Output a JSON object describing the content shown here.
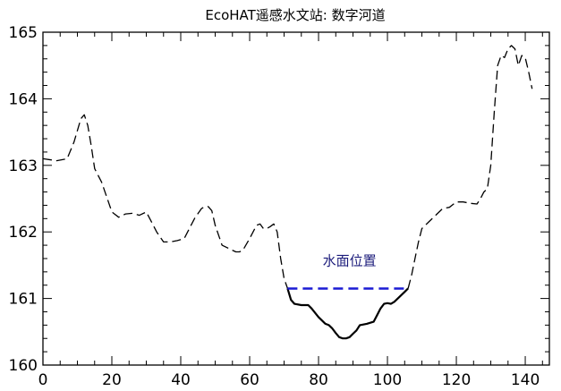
{
  "chart_data": {
    "type": "line",
    "title": "EcoHAT遥感水文站: 数字河道",
    "xlabel": "",
    "ylabel": "",
    "xlim": [
      0,
      147
    ],
    "ylim": [
      160,
      165
    ],
    "xticks": [
      0,
      20,
      40,
      60,
      80,
      100,
      120,
      140
    ],
    "yticks": [
      160,
      161,
      162,
      163,
      164,
      165
    ],
    "xtick_labels": [
      "0",
      "20",
      "40",
      "60",
      "80",
      "100",
      "120",
      "140"
    ],
    "ytick_labels": [
      "160",
      "161",
      "162",
      "163",
      "164",
      "165"
    ],
    "grid": false,
    "series": [
      {
        "style": "dashed",
        "color": "#000000",
        "x": [
          0,
          4,
          7,
          9,
          11,
          12,
          13,
          14,
          15,
          17,
          19,
          20,
          22,
          24,
          26,
          28,
          30,
          31,
          33,
          35,
          37,
          39,
          41,
          42,
          44,
          46,
          47,
          48,
          49,
          50,
          52,
          54,
          56,
          57,
          58,
          60,
          62,
          63,
          64,
          65,
          66,
          67,
          68,
          69,
          70,
          71
        ],
        "y": [
          163.1,
          163.07,
          163.1,
          163.35,
          163.7,
          163.76,
          163.6,
          163.3,
          162.95,
          162.75,
          162.45,
          162.3,
          162.22,
          162.27,
          162.28,
          162.25,
          162.3,
          162.2,
          162.0,
          161.85,
          161.85,
          161.87,
          161.9,
          162.0,
          162.2,
          162.35,
          162.38,
          162.38,
          162.32,
          162.1,
          161.8,
          161.75,
          161.7,
          161.7,
          161.72,
          161.9,
          162.1,
          162.12,
          162.05,
          162.05,
          162.08,
          162.12,
          162.0,
          161.6,
          161.3,
          161.15
        ]
      },
      {
        "style": "solid",
        "color": "#000000",
        "x": [
          71,
          72,
          73,
          75,
          77,
          78,
          80,
          82,
          83,
          84,
          85,
          86,
          87,
          88,
          89,
          90,
          91,
          92,
          94,
          96,
          97,
          98,
          99,
          100,
          101,
          102,
          104,
          105,
          106
        ],
        "y": [
          161.15,
          160.98,
          160.92,
          160.9,
          160.9,
          160.85,
          160.72,
          160.62,
          160.6,
          160.55,
          160.48,
          160.42,
          160.4,
          160.4,
          160.42,
          160.47,
          160.52,
          160.6,
          160.62,
          160.65,
          160.75,
          160.85,
          160.92,
          160.93,
          160.92,
          160.95,
          161.05,
          161.1,
          161.15
        ]
      },
      {
        "style": "dashed",
        "color": "#000000",
        "x": [
          106,
          107,
          108,
          109,
          110,
          112,
          114,
          116,
          118,
          120,
          122,
          124,
          126,
          127,
          128,
          129,
          130,
          131,
          132,
          133,
          134,
          135,
          136,
          137,
          138,
          139,
          140,
          141,
          142
        ],
        "y": [
          161.15,
          161.35,
          161.6,
          161.85,
          162.05,
          162.15,
          162.25,
          162.35,
          162.37,
          162.45,
          162.45,
          162.43,
          162.42,
          162.5,
          162.6,
          162.65,
          163.0,
          163.8,
          164.5,
          164.65,
          164.62,
          164.75,
          164.8,
          164.75,
          164.5,
          164.65,
          164.62,
          164.4,
          164.15
        ]
      }
    ],
    "water_level": {
      "y": 161.15,
      "x_start": 71,
      "x_end": 106,
      "color": "#1a1ad4",
      "style": "dashed"
    },
    "annotations": [
      {
        "text": "水面位置",
        "x": 89,
        "y": 161.5,
        "color": "#1a1a7a"
      }
    ]
  }
}
